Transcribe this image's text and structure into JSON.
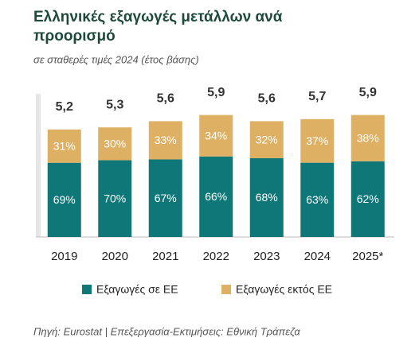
{
  "chart_data": {
    "type": "stacked_bar",
    "title": "Ελληνικές εξαγωγές μετάλλων ανά προορισμό",
    "subtitle": "σε σταθερές τιμές 2024 (έτος βάσης)",
    "categories": [
      "2019",
      "2020",
      "2021",
      "2022",
      "2023",
      "2024",
      "2025*"
    ],
    "totals": {
      "values": [
        5.2,
        5.3,
        5.6,
        5.9,
        5.6,
        5.7,
        5.9
      ],
      "value_labels": [
        "5,2",
        "5,3",
        "5,6",
        "5,9",
        "5,6",
        "5,7",
        "5,9"
      ]
    },
    "series": [
      {
        "name": "Εξαγωγές σε ΕΕ",
        "color": "#0f7778",
        "values": [
          69,
          70,
          67,
          66,
          68,
          63,
          62
        ],
        "value_labels": [
          "69%",
          "70%",
          "67%",
          "66%",
          "68%",
          "63%",
          "62%"
        ]
      },
      {
        "name": "Εξαγωγές εκτός ΕΕ",
        "color": "#ddb064",
        "values": [
          31,
          30,
          33,
          34,
          32,
          37,
          38
        ],
        "value_labels": [
          "31%",
          "30%",
          "33%",
          "34%",
          "32%",
          "37%",
          "38%"
        ]
      }
    ],
    "source": "Πηγή: Eurostat | Επεξεργασία-Εκτιμήσεις: Εθνική Τράπεζα"
  }
}
